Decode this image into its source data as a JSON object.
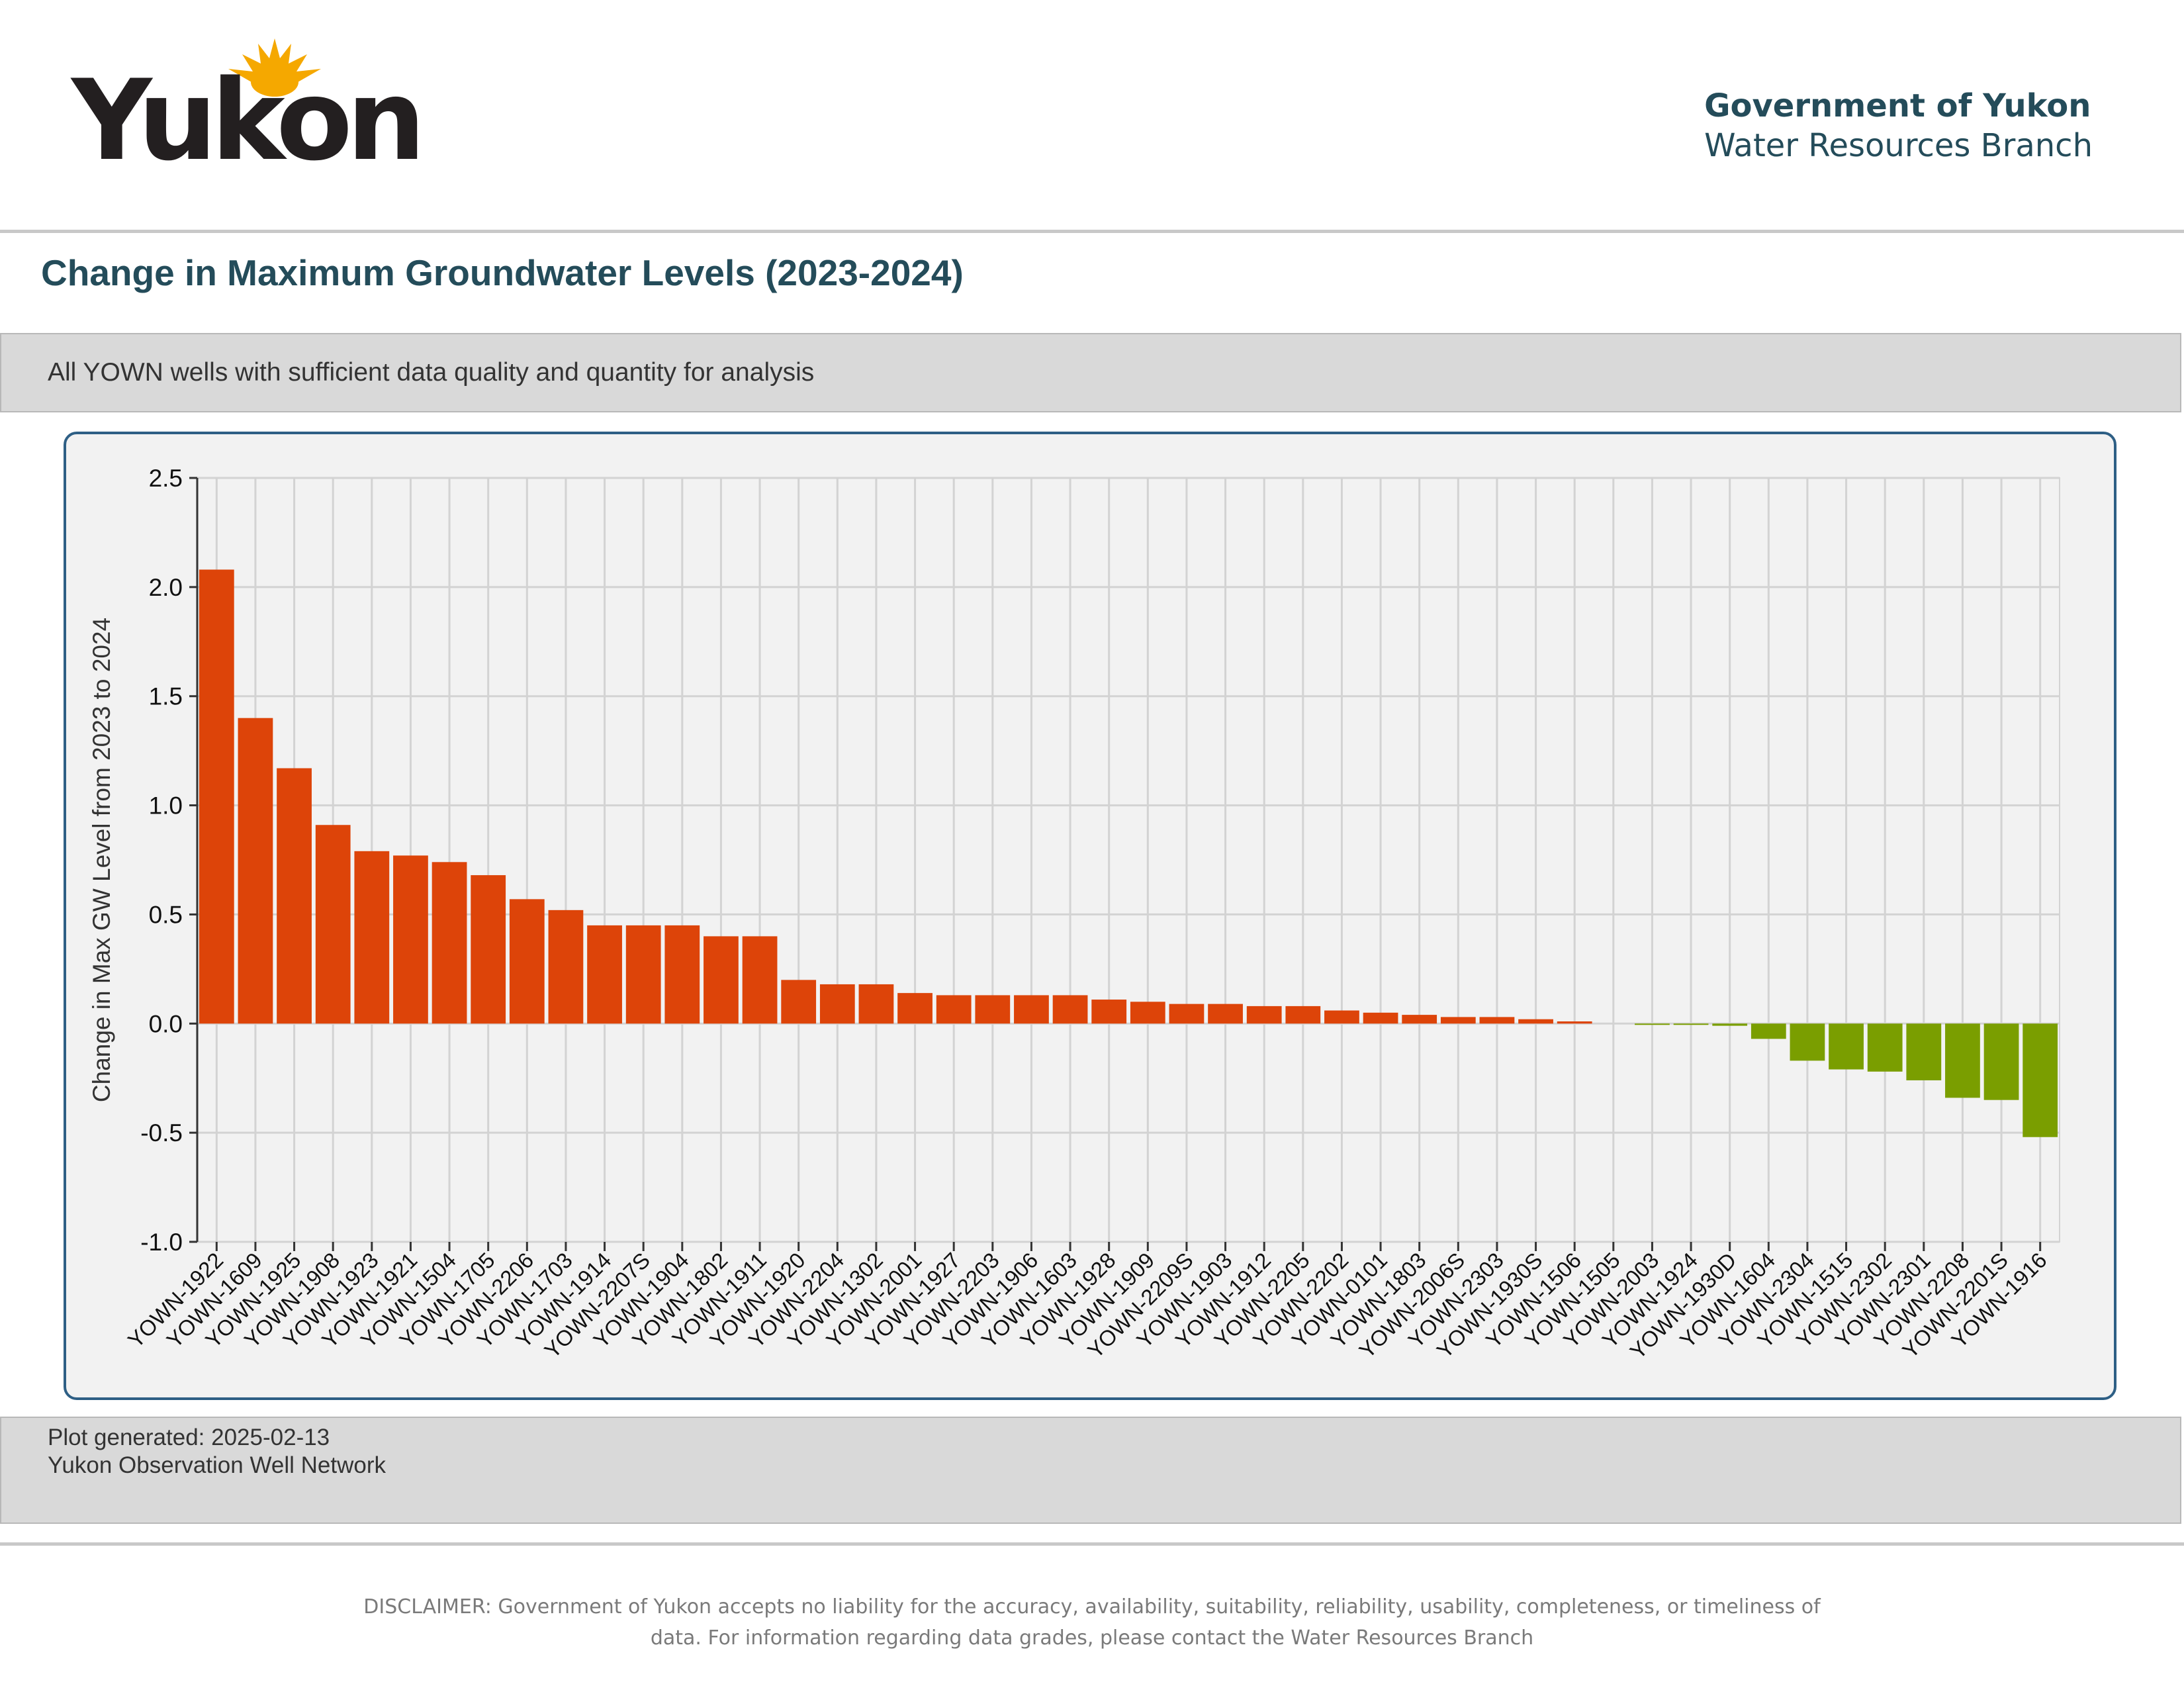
{
  "header": {
    "logo_text": "Yukon",
    "org_name": "Government of Yukon",
    "branch_name": "Water Resources Branch"
  },
  "page": {
    "title": "Change in Maximum Groundwater Levels (2023-2024)",
    "subtitle": "All YOWN wells with sufficient data quality and quantity for analysis"
  },
  "footer": {
    "generated": "Plot generated: 2025-02-13",
    "network": "Yukon Observation Well Network",
    "disclaimer": "DISCLAIMER: Government of Yukon accepts no liability for the accuracy, availability, suitability, reliability, usability, completeness, or timeliness of data. For information regarding data grades, please contact the Water Resources Branch"
  },
  "colors": {
    "increase": "#dd4409",
    "decrease": "#7a9e00",
    "plot_background": "#f2f2f2",
    "grid": "#d3d3d3",
    "title": "#244c5a",
    "sun": "#f5a800"
  },
  "chart_data": {
    "type": "bar",
    "title": "",
    "xlabel": "",
    "ylabel": "Change in Max GW Level from 2023 to 2024",
    "ylim": [
      -1.0,
      2.5
    ],
    "yticks": [
      -1.0,
      -0.5,
      0.0,
      0.5,
      1.0,
      1.5,
      2.0,
      2.5
    ],
    "grid": true,
    "legend": "none",
    "categories": [
      "YOWN-1922",
      "YOWN-1609",
      "YOWN-1925",
      "YOWN-1908",
      "YOWN-1923",
      "YOWN-1921",
      "YOWN-1504",
      "YOWN-1705",
      "YOWN-2206",
      "YOWN-1703",
      "YOWN-1914",
      "YOWN-2207S",
      "YOWN-1904",
      "YOWN-1802",
      "YOWN-1911",
      "YOWN-1920",
      "YOWN-2204",
      "YOWN-1302",
      "YOWN-2001",
      "YOWN-1927",
      "YOWN-2203",
      "YOWN-1906",
      "YOWN-1603",
      "YOWN-1928",
      "YOWN-1909",
      "YOWN-2209S",
      "YOWN-1903",
      "YOWN-1912",
      "YOWN-2205",
      "YOWN-2202",
      "YOWN-0101",
      "YOWN-1803",
      "YOWN-2006S",
      "YOWN-2303",
      "YOWN-1930S",
      "YOWN-1506",
      "YOWN-1505",
      "YOWN-2003",
      "YOWN-1924",
      "YOWN-1930D",
      "YOWN-1604",
      "YOWN-2304",
      "YOWN-1515",
      "YOWN-2302",
      "YOWN-2301",
      "YOWN-2208",
      "YOWN-2201S",
      "YOWN-1916"
    ],
    "values": [
      2.08,
      1.4,
      1.17,
      0.91,
      0.79,
      0.77,
      0.74,
      0.68,
      0.57,
      0.52,
      0.45,
      0.45,
      0.45,
      0.4,
      0.4,
      0.2,
      0.18,
      0.18,
      0.14,
      0.13,
      0.13,
      0.13,
      0.13,
      0.11,
      0.1,
      0.09,
      0.09,
      0.08,
      0.08,
      0.06,
      0.05,
      0.04,
      0.03,
      0.03,
      0.02,
      0.01,
      0.0,
      -0.005,
      -0.005,
      -0.01,
      -0.07,
      -0.17,
      -0.21,
      -0.22,
      -0.26,
      -0.34,
      -0.35,
      -0.52
    ]
  }
}
